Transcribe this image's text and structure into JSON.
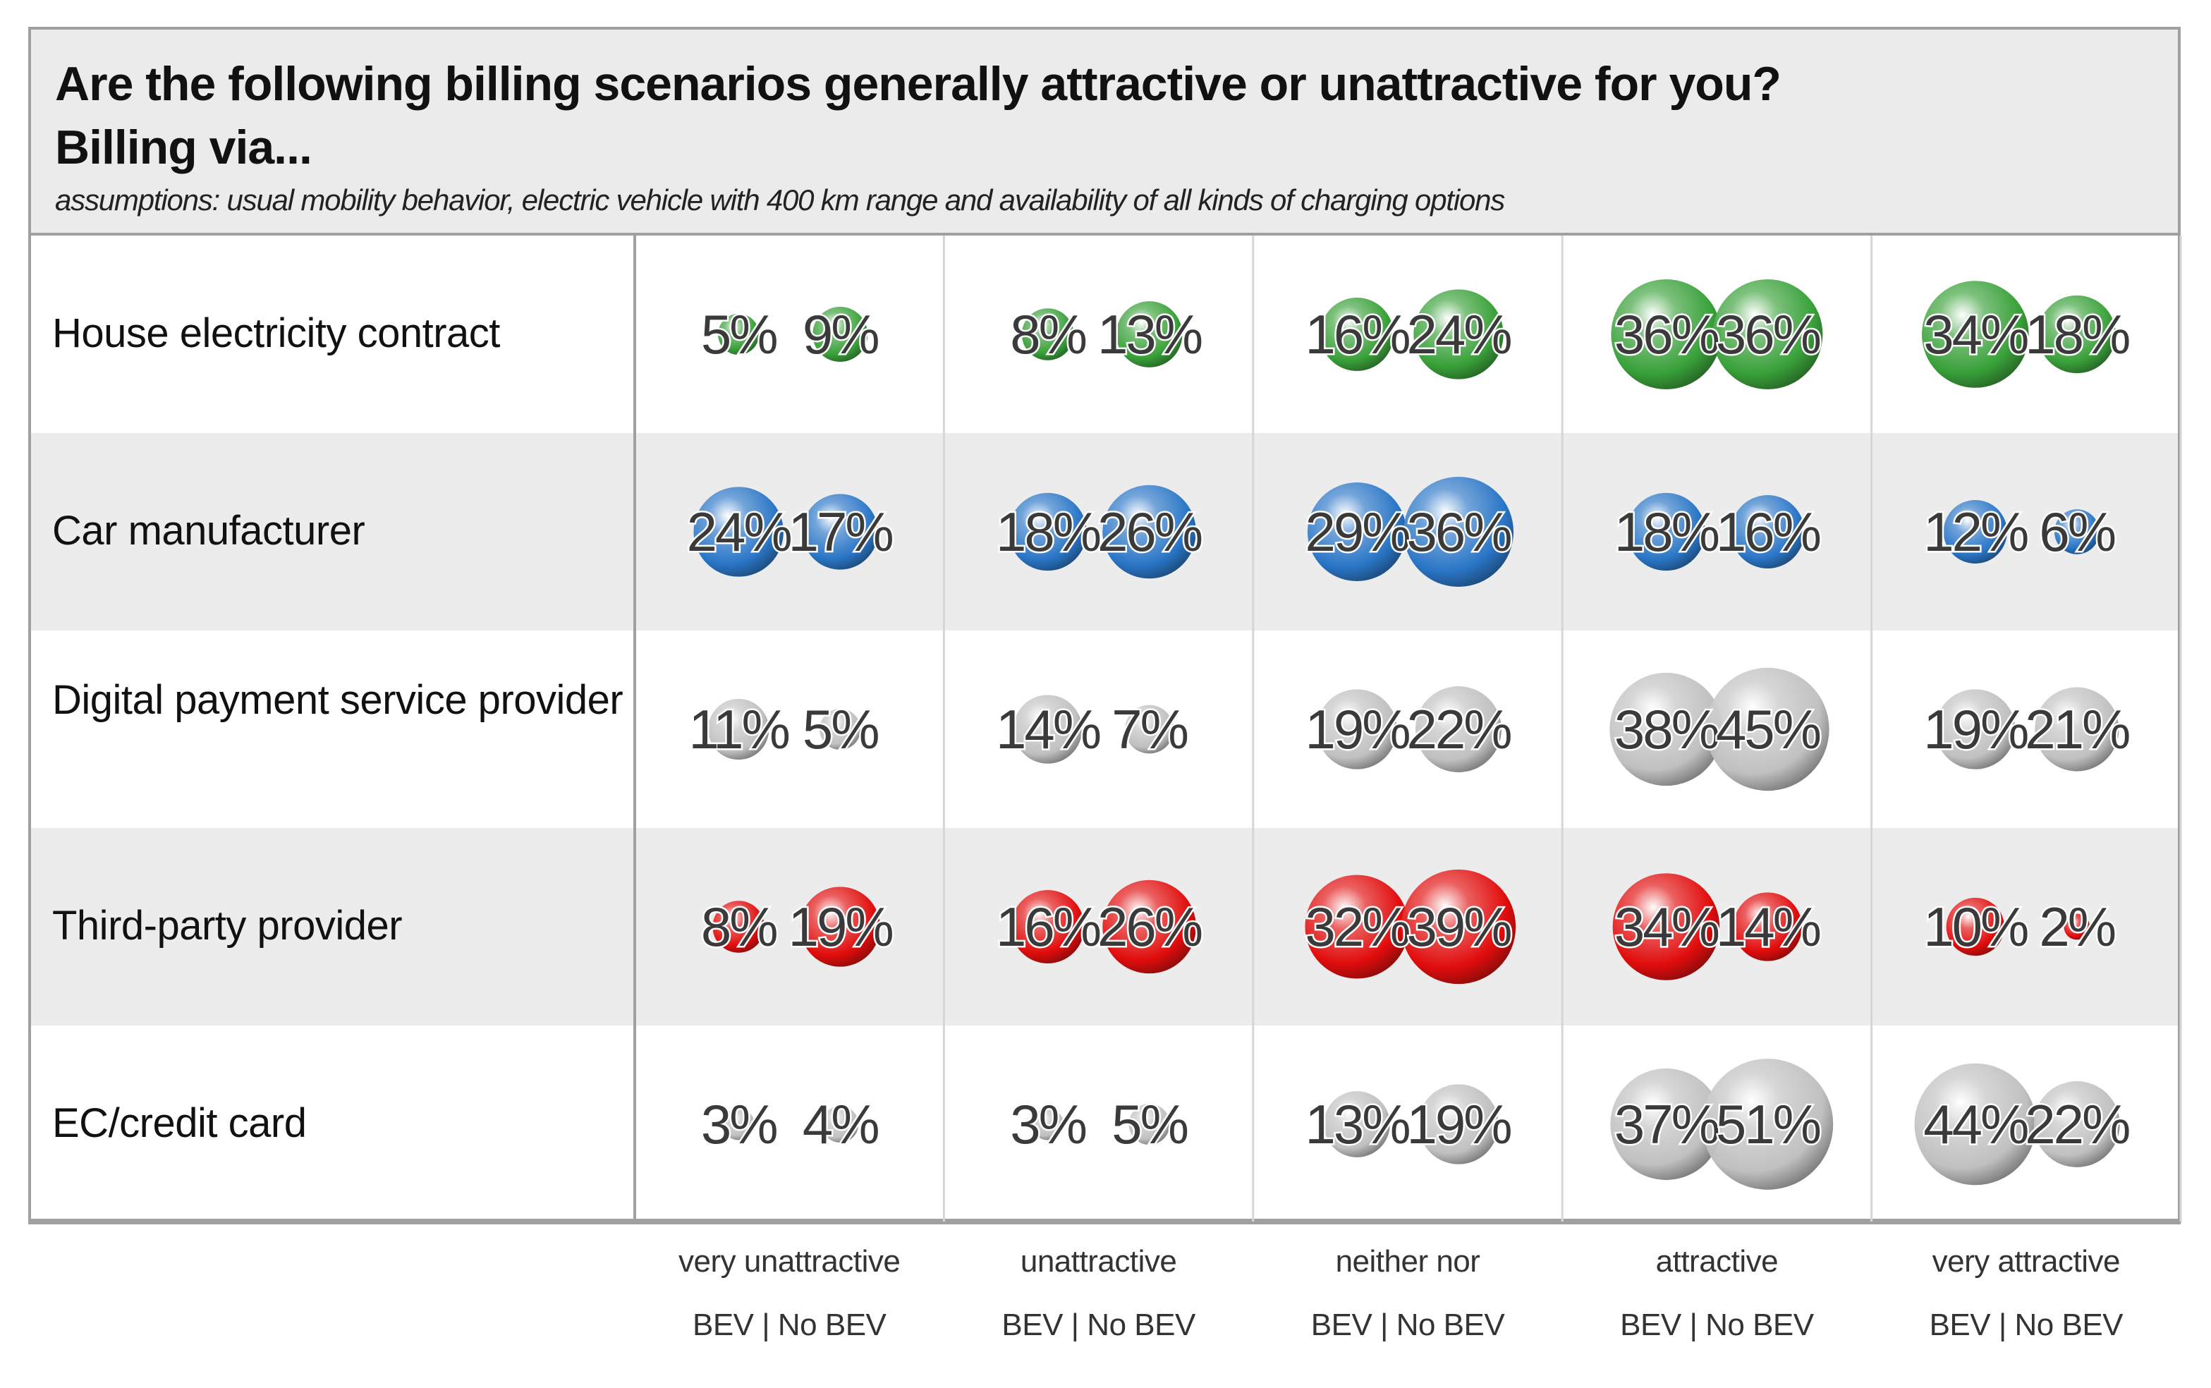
{
  "header": {
    "title_line1": "Are the following billing scenarios generally attractive or unattractive for you?",
    "title_line2": "Billing via...",
    "subtitle": "assumptions: usual mobility behavior, electric vehicle with 400 km range and availability of all kinds of charging options"
  },
  "colors": {
    "green": "#2e9b2e",
    "blue": "#1f6fc4",
    "grey": "#bdbdbd",
    "red": "#e00000",
    "row_alt_bg": "#ececec",
    "border": "#a0a0a0"
  },
  "chart_data": {
    "type": "bubble-table",
    "title": "Are the following billing scenarios generally attractive or unattractive for you?",
    "subtitle": "assumptions: usual mobility behavior, electric vehicle with 400 km range and availability of all kinds of charging options",
    "categories": [
      "very unattractive",
      "unattractive",
      "neither nor",
      "attractive",
      "very attractive"
    ],
    "series_labels": [
      "BEV",
      "No BEV"
    ],
    "sub_label_text": "BEV |  No BEV",
    "rows": [
      {
        "label": "House electricity contract",
        "color": "green",
        "bev": [
          5,
          8,
          16,
          36,
          34
        ],
        "nobev": [
          9,
          13,
          24,
          36,
          18
        ]
      },
      {
        "label": "Car manufacturer",
        "color": "blue",
        "bev": [
          24,
          18,
          29,
          18,
          12
        ],
        "nobev": [
          17,
          26,
          36,
          16,
          6
        ]
      },
      {
        "label": "Digital payment service provider",
        "color": "grey",
        "bev": [
          11,
          14,
          19,
          38,
          19
        ],
        "nobev": [
          5,
          7,
          22,
          45,
          21
        ]
      },
      {
        "label": "Third-party provider",
        "color": "red",
        "bev": [
          8,
          16,
          32,
          34,
          10
        ],
        "nobev": [
          19,
          26,
          39,
          14,
          2
        ]
      },
      {
        "label": "EC/credit card",
        "color": "grey",
        "bev": [
          3,
          3,
          13,
          37,
          44
        ],
        "nobev": [
          4,
          5,
          19,
          51,
          22
        ]
      }
    ],
    "value_suffix": "%"
  }
}
